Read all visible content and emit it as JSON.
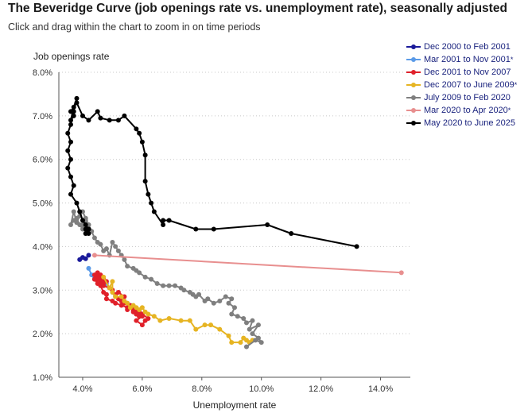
{
  "title": "The Beveridge Curve (job openings rate vs. unemployment rate), seasonally adjusted",
  "subtitle": "Click and drag within the chart to zoom in on time periods",
  "colors": {
    "background": "#ffffff",
    "grid": "#c8c8c8",
    "axis": "#555555"
  },
  "chart_data": {
    "type": "line",
    "title": "The Beveridge Curve (job openings rate vs. unemployment rate), seasonally adjusted",
    "xlabel": "Unemployment rate",
    "ylabel": "Job openings rate",
    "xlim": [
      3.2,
      15.0
    ],
    "ylim": [
      1.0,
      8.0
    ],
    "xticks": [
      4,
      6,
      8,
      10,
      12,
      14
    ],
    "xtick_labels": [
      "4.0%",
      "6.0%",
      "8.0%",
      "10.0%",
      "12.0%",
      "14.0%"
    ],
    "yticks": [
      1,
      2,
      3,
      4,
      5,
      6,
      7,
      8
    ],
    "ytick_labels": [
      "1.0%",
      "2.0%",
      "3.0%",
      "4.0%",
      "5.0%",
      "6.0%",
      "7.0%",
      "8.0%"
    ],
    "grid": "horizontal dotted",
    "legend_position": "top-right",
    "series": [
      {
        "name": "Dec 2000 to Feb 2001",
        "star": false,
        "color": "#1a1a9a",
        "points": [
          [
            3.9,
            3.7
          ],
          [
            4.0,
            3.75
          ],
          [
            4.1,
            3.72
          ],
          [
            4.2,
            3.8
          ]
        ]
      },
      {
        "name": "Mar 2001 to Nov 2001",
        "star": true,
        "color": "#5b9be8",
        "points": [
          [
            4.2,
            3.5
          ],
          [
            4.3,
            3.35
          ],
          [
            4.4,
            3.3
          ],
          [
            4.6,
            3.25
          ],
          [
            4.8,
            3.15
          ],
          [
            5.0,
            2.95
          ],
          [
            5.1,
            2.85
          ],
          [
            5.3,
            2.75
          ],
          [
            5.5,
            2.7
          ],
          [
            5.6,
            2.65
          ]
        ]
      },
      {
        "name": "Dec 2001 to Nov 2007",
        "star": false,
        "color": "#e0202a",
        "points": [
          [
            5.7,
            2.6
          ],
          [
            5.8,
            2.5
          ],
          [
            5.9,
            2.5
          ],
          [
            5.8,
            2.45
          ],
          [
            5.9,
            2.4
          ],
          [
            6.0,
            2.4
          ],
          [
            5.8,
            2.3
          ],
          [
            6.0,
            2.2
          ],
          [
            6.1,
            2.3
          ],
          [
            6.2,
            2.35
          ],
          [
            6.0,
            2.45
          ],
          [
            5.9,
            2.4
          ],
          [
            5.8,
            2.45
          ],
          [
            5.7,
            2.5
          ],
          [
            5.6,
            2.6
          ],
          [
            5.5,
            2.55
          ],
          [
            5.6,
            2.65
          ],
          [
            5.4,
            2.7
          ],
          [
            5.3,
            2.75
          ],
          [
            5.2,
            2.8
          ],
          [
            5.4,
            2.85
          ],
          [
            5.2,
            2.95
          ],
          [
            5.1,
            2.9
          ],
          [
            5.0,
            3.0
          ],
          [
            4.9,
            3.05
          ],
          [
            4.7,
            3.1
          ],
          [
            4.8,
            3.2
          ],
          [
            4.6,
            3.3
          ],
          [
            4.7,
            3.25
          ],
          [
            4.6,
            3.35
          ],
          [
            4.5,
            3.3
          ],
          [
            4.4,
            3.25
          ],
          [
            4.6,
            3.2
          ],
          [
            4.5,
            3.4
          ],
          [
            4.4,
            3.35
          ],
          [
            4.5,
            3.15
          ],
          [
            4.4,
            3.25
          ],
          [
            4.6,
            3.25
          ],
          [
            4.7,
            3.2
          ],
          [
            4.6,
            3.1
          ],
          [
            4.7,
            2.95
          ],
          [
            4.8,
            2.9
          ],
          [
            4.8,
            2.8
          ],
          [
            5.0,
            2.75
          ],
          [
            5.1,
            2.7
          ],
          [
            5.3,
            2.65
          ],
          [
            5.5,
            2.6
          ],
          [
            5.7,
            2.55
          ]
        ]
      },
      {
        "name": "Dec 2007 to June 2009",
        "star": true,
        "color": "#e6b422",
        "points": [
          [
            4.7,
            3.3
          ],
          [
            4.9,
            3.05
          ],
          [
            5.0,
            3.2
          ],
          [
            5.0,
            2.95
          ],
          [
            5.1,
            2.85
          ],
          [
            5.3,
            2.85
          ],
          [
            5.4,
            2.75
          ],
          [
            5.5,
            2.7
          ],
          [
            5.6,
            2.6
          ],
          [
            5.7,
            2.65
          ],
          [
            5.8,
            2.6
          ],
          [
            5.9,
            2.55
          ],
          [
            6.0,
            2.6
          ],
          [
            6.1,
            2.5
          ],
          [
            6.2,
            2.45
          ],
          [
            6.4,
            2.4
          ],
          [
            6.6,
            2.3
          ],
          [
            6.9,
            2.35
          ],
          [
            7.3,
            2.3
          ],
          [
            7.6,
            2.3
          ],
          [
            7.8,
            2.1
          ],
          [
            8.1,
            2.2
          ],
          [
            8.3,
            2.2
          ],
          [
            8.6,
            2.1
          ],
          [
            8.9,
            1.95
          ],
          [
            9.0,
            1.8
          ],
          [
            9.3,
            1.8
          ],
          [
            9.4,
            1.9
          ],
          [
            9.5,
            1.85
          ],
          [
            9.6,
            1.8
          ],
          [
            9.7,
            1.85
          ]
        ]
      },
      {
        "name": "July 2009 to Feb 2020",
        "star": false,
        "color": "#7f7f7f",
        "points": [
          [
            9.5,
            1.7
          ],
          [
            9.8,
            1.85
          ],
          [
            10.0,
            1.8
          ],
          [
            9.9,
            1.9
          ],
          [
            9.7,
            2.0
          ],
          [
            9.9,
            2.2
          ],
          [
            9.6,
            2.1
          ],
          [
            9.7,
            2.3
          ],
          [
            9.5,
            2.25
          ],
          [
            9.4,
            2.35
          ],
          [
            9.2,
            2.4
          ],
          [
            9.0,
            2.45
          ],
          [
            9.1,
            2.6
          ],
          [
            8.9,
            2.7
          ],
          [
            9.0,
            2.8
          ],
          [
            8.8,
            2.85
          ],
          [
            8.6,
            2.75
          ],
          [
            8.4,
            2.7
          ],
          [
            8.2,
            2.8
          ],
          [
            8.1,
            2.75
          ],
          [
            7.9,
            2.9
          ],
          [
            7.8,
            2.85
          ],
          [
            7.7,
            2.9
          ],
          [
            7.6,
            2.95
          ],
          [
            7.4,
            3.0
          ],
          [
            7.3,
            3.05
          ],
          [
            7.1,
            3.1
          ],
          [
            6.9,
            3.1
          ],
          [
            6.7,
            3.1
          ],
          [
            6.5,
            3.15
          ],
          [
            6.3,
            3.25
          ],
          [
            6.1,
            3.3
          ],
          [
            5.9,
            3.4
          ],
          [
            5.8,
            3.45
          ],
          [
            5.7,
            3.5
          ],
          [
            5.5,
            3.55
          ],
          [
            5.4,
            3.7
          ],
          [
            5.3,
            3.8
          ],
          [
            5.2,
            3.9
          ],
          [
            5.1,
            4.0
          ],
          [
            5.0,
            4.1
          ],
          [
            4.9,
            3.8
          ],
          [
            4.8,
            3.95
          ],
          [
            4.7,
            3.9
          ],
          [
            4.6,
            4.05
          ],
          [
            4.5,
            4.1
          ],
          [
            4.4,
            4.2
          ],
          [
            4.3,
            4.35
          ],
          [
            4.2,
            4.5
          ],
          [
            4.1,
            4.6
          ],
          [
            4.0,
            4.4
          ],
          [
            3.9,
            4.5
          ],
          [
            3.8,
            4.65
          ],
          [
            3.7,
            4.6
          ],
          [
            3.6,
            4.5
          ],
          [
            3.7,
            4.8
          ],
          [
            3.8,
            4.55
          ],
          [
            3.9,
            4.7
          ],
          [
            4.0,
            4.8
          ],
          [
            4.1,
            4.65
          ],
          [
            4.2,
            4.5
          ],
          [
            4.1,
            4.3
          ],
          [
            4.0,
            4.5
          ]
        ]
      },
      {
        "name": "Mar 2020 to Apr 2020",
        "star": true,
        "color": "#e88f8f",
        "points": [
          [
            4.4,
            3.8
          ],
          [
            14.7,
            3.4
          ]
        ]
      },
      {
        "name": "May 2020 to June 2025",
        "star": false,
        "color": "#000000",
        "points": [
          [
            13.2,
            4.0
          ],
          [
            11.0,
            4.3
          ],
          [
            10.2,
            4.5
          ],
          [
            8.4,
            4.4
          ],
          [
            7.8,
            4.4
          ],
          [
            6.9,
            4.6
          ],
          [
            6.7,
            4.6
          ],
          [
            6.7,
            4.5
          ],
          [
            6.4,
            4.8
          ],
          [
            6.3,
            5.0
          ],
          [
            6.2,
            5.2
          ],
          [
            6.1,
            5.5
          ],
          [
            6.1,
            6.1
          ],
          [
            6.0,
            6.4
          ],
          [
            5.9,
            6.6
          ],
          [
            5.8,
            6.7
          ],
          [
            5.4,
            7.0
          ],
          [
            5.2,
            6.9
          ],
          [
            4.9,
            6.9
          ],
          [
            4.6,
            6.95
          ],
          [
            4.5,
            7.1
          ],
          [
            4.2,
            6.9
          ],
          [
            4.0,
            7.0
          ],
          [
            3.8,
            7.3
          ],
          [
            3.6,
            7.1
          ],
          [
            3.7,
            7.0
          ],
          [
            3.6,
            6.9
          ],
          [
            3.7,
            7.2
          ],
          [
            3.8,
            7.4
          ],
          [
            3.7,
            7.1
          ],
          [
            3.6,
            6.8
          ],
          [
            3.5,
            6.6
          ],
          [
            3.6,
            6.4
          ],
          [
            3.5,
            6.2
          ],
          [
            3.6,
            6.0
          ],
          [
            3.5,
            5.8
          ],
          [
            3.6,
            5.6
          ],
          [
            3.7,
            5.4
          ],
          [
            3.6,
            5.2
          ],
          [
            3.8,
            5.0
          ],
          [
            3.9,
            4.8
          ],
          [
            4.0,
            4.6
          ],
          [
            4.1,
            4.5
          ],
          [
            4.2,
            4.4
          ],
          [
            4.2,
            4.3
          ],
          [
            4.1,
            4.3
          ],
          [
            4.2,
            4.4
          ],
          [
            4.1,
            4.4
          ]
        ]
      }
    ]
  }
}
